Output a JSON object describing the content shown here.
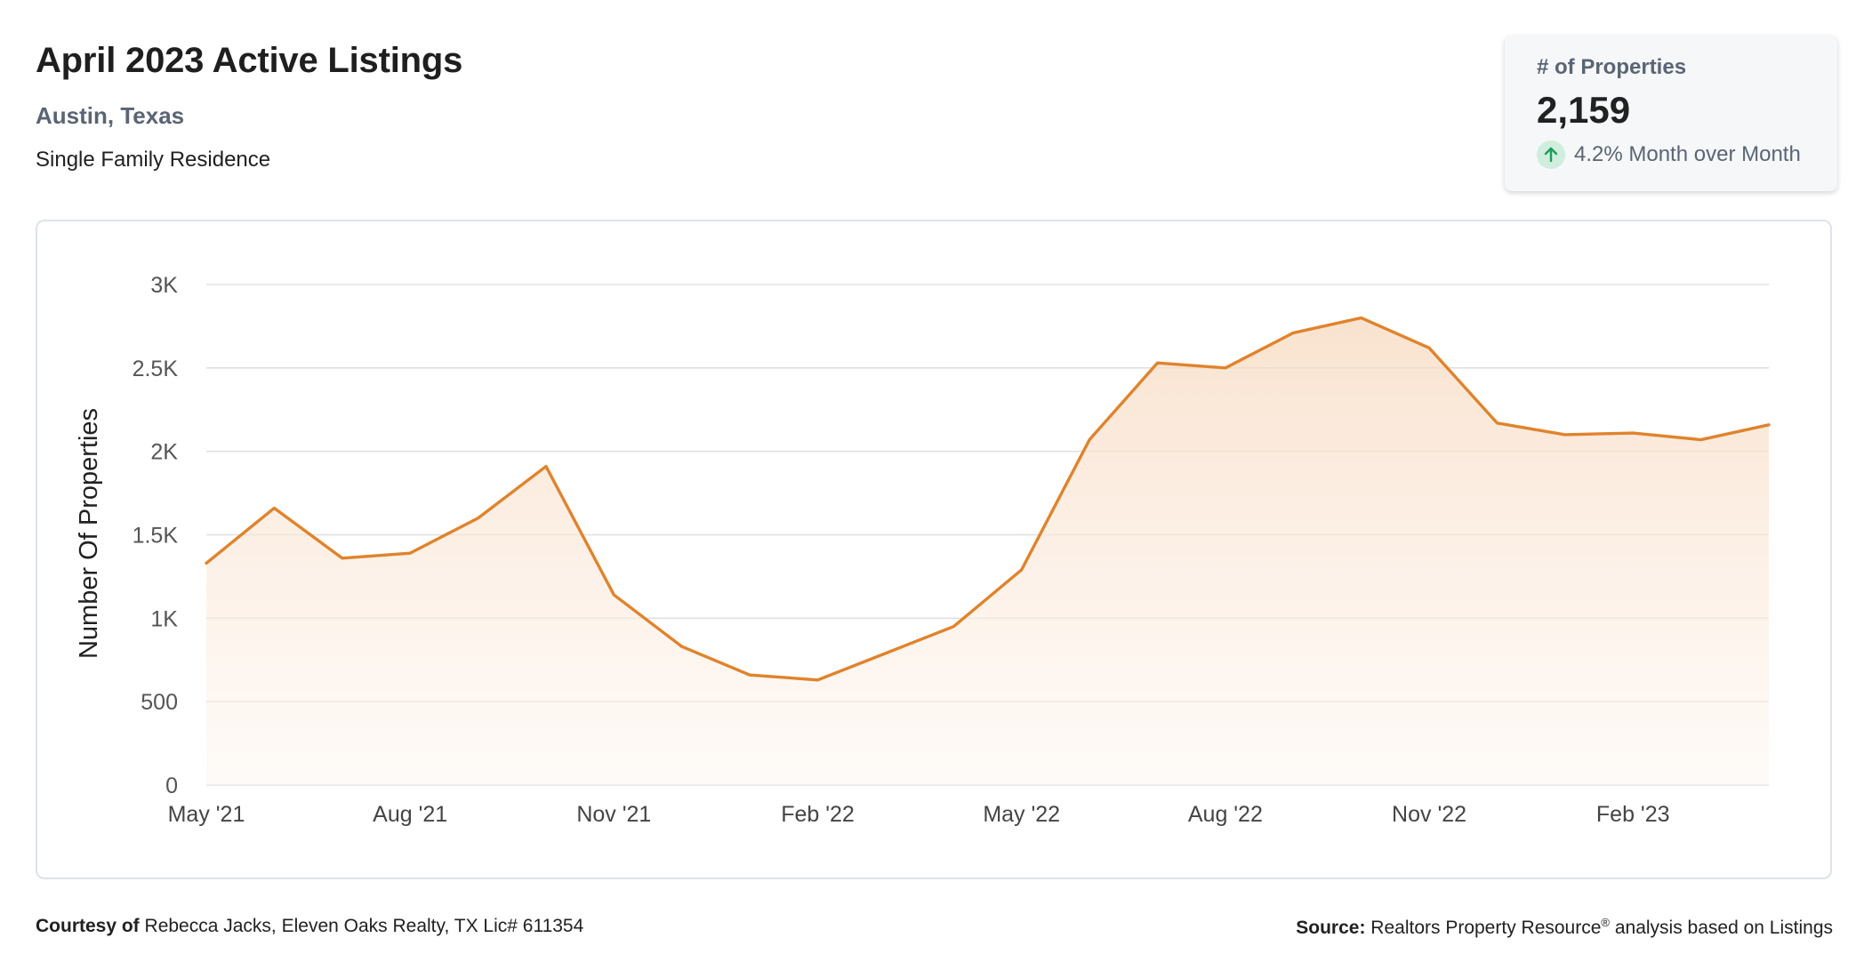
{
  "header": {
    "title": "April 2023 Active Listings",
    "location": "Austin, Texas",
    "property_type": "Single Family Residence"
  },
  "stat_card": {
    "label": "# of Properties",
    "value": "2,159",
    "change_text": "4.2% Month over Month",
    "change_icon": "arrow-up-icon",
    "change_color": "#1e9c5a"
  },
  "colors": {
    "line": "#e0832c",
    "area_top": "#f7d9bf",
    "grid": "#e0e0e0"
  },
  "chart_data": {
    "type": "area",
    "title": "",
    "xlabel": "",
    "ylabel": "Number Of Properties",
    "ylim": [
      0,
      3000
    ],
    "yticks": [
      0,
      500,
      1000,
      1500,
      2000,
      2500,
      3000
    ],
    "ytick_labels": [
      "0",
      "500",
      "1K",
      "1.5K",
      "2K",
      "2.5K",
      "3K"
    ],
    "xtick_labels": [
      "May '21",
      "Aug '21",
      "Nov '21",
      "Feb '22",
      "May '22",
      "Aug '22",
      "Nov '22",
      "Feb '23"
    ],
    "categories": [
      "May '21",
      "Jun '21",
      "Jul '21",
      "Aug '21",
      "Sep '21",
      "Oct '21",
      "Nov '21",
      "Dec '21",
      "Jan '22",
      "Feb '22",
      "Mar '22",
      "Apr '22",
      "May '22",
      "Jun '22",
      "Jul '22",
      "Aug '22",
      "Sep '22",
      "Oct '22",
      "Nov '22",
      "Dec '22",
      "Jan '23",
      "Feb '23",
      "Mar '23",
      "Apr '23"
    ],
    "series": [
      {
        "values": [
          1330,
          1660,
          1360,
          1390,
          1600,
          1910,
          1140,
          830,
          660,
          630,
          790,
          950,
          1290,
          2070,
          2530,
          2500,
          2710,
          2800,
          2620,
          2170,
          2100,
          2110,
          2070,
          2159
        ]
      }
    ],
    "grid": true,
    "legend": "none"
  },
  "footer": {
    "courtesy_label": "Courtesy of",
    "courtesy_text": "Rebecca Jacks, Eleven Oaks Realty, TX Lic# 611354",
    "source_label": "Source:",
    "source_text": "Realtors Property Resource",
    "source_reg": "®",
    "source_suffix": "analysis based on Listings"
  }
}
